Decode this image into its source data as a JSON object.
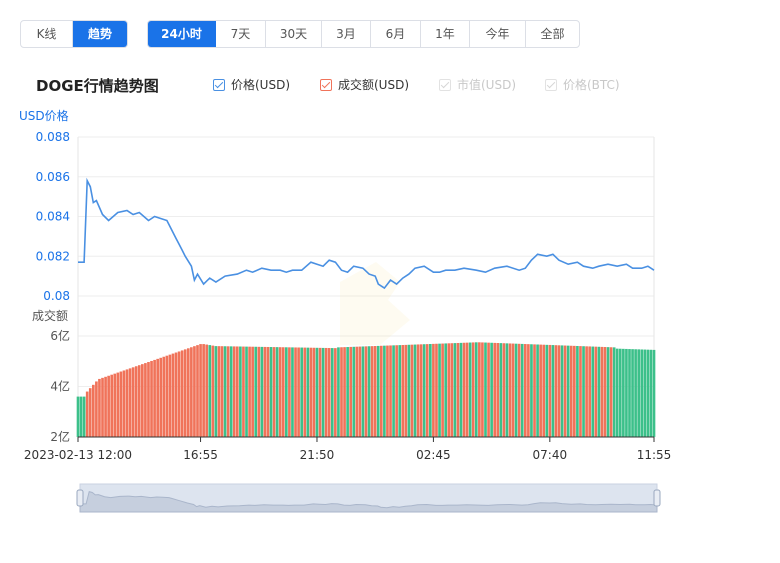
{
  "mode_tabs": [
    {
      "label": "K线",
      "active": false
    },
    {
      "label": "趋势",
      "active": true
    }
  ],
  "range_tabs": [
    {
      "label": "24小时",
      "active": true
    },
    {
      "label": "7天",
      "active": false
    },
    {
      "label": "30天",
      "active": false
    },
    {
      "label": "3月",
      "active": false
    },
    {
      "label": "6月",
      "active": false
    },
    {
      "label": "1年",
      "active": false
    },
    {
      "label": "今年",
      "active": false
    },
    {
      "label": "全部",
      "active": false
    }
  ],
  "chart_title": "DOGE行情趋势图",
  "legend": [
    {
      "label": "价格(USD)",
      "checked": true,
      "enabled": true,
      "color": "#4a90e2"
    },
    {
      "label": "成交额(USD)",
      "checked": true,
      "enabled": true,
      "color": "#f0735a"
    },
    {
      "label": "市值(USD)",
      "checked": true,
      "enabled": false,
      "color": "#d0d0d0"
    },
    {
      "label": "价格(BTC)",
      "checked": true,
      "enabled": false,
      "color": "#d0d0d0"
    }
  ],
  "colors": {
    "price_line": "#4a90e2",
    "volume_up": "#f0735a",
    "volume_down": "#3cc08a",
    "axis_label": "#1a73e8",
    "grid": "#eeeeee"
  },
  "chart_data": {
    "type": "line",
    "price": {
      "ylabel": "USD价格",
      "ylim": [
        0.08,
        0.088
      ],
      "yticks": [
        "0.088",
        "0.086",
        "0.084",
        "0.082",
        "0.08"
      ],
      "points": [
        [
          0,
          0.0817
        ],
        [
          2,
          0.0817
        ],
        [
          3,
          0.0858
        ],
        [
          4,
          0.0855
        ],
        [
          5,
          0.0847
        ],
        [
          6,
          0.0848
        ],
        [
          8,
          0.0841
        ],
        [
          10,
          0.0838
        ],
        [
          13,
          0.0842
        ],
        [
          16,
          0.0843
        ],
        [
          18,
          0.0841
        ],
        [
          20,
          0.0842
        ],
        [
          23,
          0.0838
        ],
        [
          25,
          0.084
        ],
        [
          27,
          0.0839
        ],
        [
          29,
          0.0838
        ],
        [
          30,
          0.0835
        ],
        [
          32,
          0.0829
        ],
        [
          33,
          0.0826
        ],
        [
          34,
          0.0823
        ],
        [
          35,
          0.082
        ],
        [
          37,
          0.0815
        ],
        [
          38,
          0.0808
        ],
        [
          39,
          0.0811
        ],
        [
          41,
          0.0806
        ],
        [
          43,
          0.0809
        ],
        [
          45,
          0.0807
        ],
        [
          48,
          0.081
        ],
        [
          52,
          0.0811
        ],
        [
          55,
          0.0813
        ],
        [
          57,
          0.0812
        ],
        [
          60,
          0.0814
        ],
        [
          63,
          0.0813
        ],
        [
          66,
          0.0813
        ],
        [
          68,
          0.0812
        ],
        [
          70,
          0.0813
        ],
        [
          73,
          0.0813
        ],
        [
          76,
          0.0817
        ],
        [
          78,
          0.0816
        ],
        [
          80,
          0.0815
        ],
        [
          82,
          0.0818
        ],
        [
          84,
          0.0817
        ],
        [
          86,
          0.0813
        ],
        [
          88,
          0.0812
        ],
        [
          90,
          0.0815
        ],
        [
          93,
          0.0814
        ],
        [
          95,
          0.0811
        ],
        [
          97,
          0.081
        ],
        [
          98,
          0.0806
        ],
        [
          100,
          0.0804
        ],
        [
          102,
          0.0808
        ],
        [
          104,
          0.0806
        ],
        [
          106,
          0.0809
        ],
        [
          108,
          0.0811
        ],
        [
          110,
          0.0814
        ],
        [
          113,
          0.0815
        ],
        [
          116,
          0.0812
        ],
        [
          118,
          0.0812
        ],
        [
          120,
          0.0813
        ],
        [
          123,
          0.0813
        ],
        [
          126,
          0.0814
        ],
        [
          130,
          0.0813
        ],
        [
          133,
          0.0812
        ],
        [
          136,
          0.0814
        ],
        [
          140,
          0.0815
        ],
        [
          144,
          0.0813
        ],
        [
          146,
          0.0814
        ],
        [
          148,
          0.0818
        ],
        [
          150,
          0.0821
        ],
        [
          153,
          0.082
        ],
        [
          155,
          0.0821
        ],
        [
          157,
          0.0818
        ],
        [
          160,
          0.0816
        ],
        [
          163,
          0.0817
        ],
        [
          165,
          0.0815
        ],
        [
          168,
          0.0814
        ],
        [
          170,
          0.0815
        ],
        [
          173,
          0.0816
        ],
        [
          176,
          0.0815
        ],
        [
          179,
          0.0816
        ],
        [
          181,
          0.0814
        ],
        [
          184,
          0.0814
        ],
        [
          186,
          0.0815
        ],
        [
          188,
          0.0813
        ]
      ]
    },
    "volume": {
      "ylabel": "成交额",
      "ylim": [
        2,
        6
      ],
      "yticks": [
        "6亿",
        "4亿",
        "2亿"
      ],
      "count": 189,
      "segments": [
        {
          "from": 0,
          "to": 2,
          "start": 3.6,
          "end": 3.6,
          "color": "down"
        },
        {
          "from": 3,
          "to": 6,
          "start": 3.8,
          "end": 4.2,
          "color": "up"
        },
        {
          "from": 7,
          "to": 40,
          "start": 4.3,
          "end": 5.68,
          "color": "up"
        },
        {
          "from": 41,
          "to": 44,
          "start": 5.68,
          "end": 5.62,
          "color": "mixed"
        },
        {
          "from": 45,
          "to": 84,
          "start": 5.6,
          "end": 5.52,
          "color": "mixed"
        },
        {
          "from": 85,
          "to": 130,
          "start": 5.55,
          "end": 5.75,
          "color": "mixed"
        },
        {
          "from": 131,
          "to": 175,
          "start": 5.75,
          "end": 5.55,
          "color": "mixed"
        },
        {
          "from": 176,
          "to": 188,
          "start": 5.5,
          "end": 5.45,
          "color": "down"
        }
      ]
    },
    "x_ticks": [
      {
        "i": 0,
        "label": "2023-02-13 12:00"
      },
      {
        "i": 40,
        "label": "16:55"
      },
      {
        "i": 78,
        "label": "21:50"
      },
      {
        "i": 116,
        "label": "02:45"
      },
      {
        "i": 154,
        "label": "07:40"
      },
      {
        "i": 188,
        "label": "11:55"
      }
    ]
  }
}
